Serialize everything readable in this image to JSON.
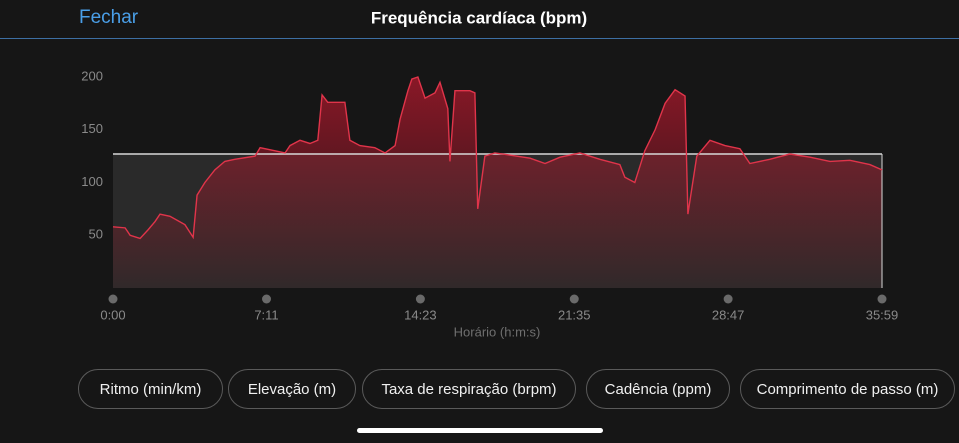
{
  "header": {
    "close": "Fechar",
    "title": "Frequência cardíaca (bpm)"
  },
  "chart_data": {
    "type": "area",
    "x_label": "Horário (h:m:s)",
    "xlim": [
      0,
      2159
    ],
    "xticks": [
      {
        "value": 0,
        "label": "0:00"
      },
      {
        "value": 431,
        "label": "7:11"
      },
      {
        "value": 863,
        "label": "14:23"
      },
      {
        "value": 1295,
        "label": "21:35"
      },
      {
        "value": 1727,
        "label": "28:47"
      },
      {
        "value": 2159,
        "label": "35:59"
      }
    ],
    "ylim": [
      0,
      200
    ],
    "yticks": [
      50,
      100,
      150,
      200
    ],
    "average": 127,
    "color": "#e0344a",
    "x": [
      0,
      34,
      48,
      76,
      98,
      118,
      132,
      160,
      202,
      225,
      236,
      258,
      286,
      314,
      342,
      399,
      413,
      455,
      483,
      497,
      525,
      553,
      575,
      587,
      603,
      651,
      665,
      693,
      735,
      764,
      792,
      806,
      828,
      839,
      856,
      876,
      904,
      918,
      940,
      946,
      960,
      1002,
      1016,
      1024,
      1044,
      1072,
      1114,
      1171,
      1213,
      1255,
      1311,
      1367,
      1423,
      1437,
      1465,
      1493,
      1522,
      1550,
      1578,
      1606,
      1614,
      1639,
      1676,
      1718,
      1760,
      1788,
      1844,
      1900,
      1957,
      2013,
      2069,
      2125,
      2159
    ],
    "values": [
      58,
      57,
      50,
      47,
      55,
      63,
      70,
      68,
      60,
      48,
      88,
      100,
      112,
      120,
      122,
      125,
      133,
      130,
      128,
      135,
      140,
      137,
      140,
      183,
      176,
      176,
      140,
      135,
      133,
      128,
      135,
      160,
      187,
      198,
      200,
      180,
      185,
      195,
      170,
      120,
      187,
      187,
      185,
      75,
      125,
      128,
      126,
      123,
      118,
      124,
      128,
      122,
      117,
      105,
      100,
      130,
      150,
      175,
      188,
      182,
      70,
      125,
      140,
      135,
      132,
      118,
      122,
      127,
      124,
      120,
      121,
      117,
      112
    ]
  },
  "buttons": [
    "Ritmo (min/km)",
    "Elevação (m)",
    "Taxa de respiração (brpm)",
    "Cadência (ppm)",
    "Comprimento de passo (m)"
  ]
}
